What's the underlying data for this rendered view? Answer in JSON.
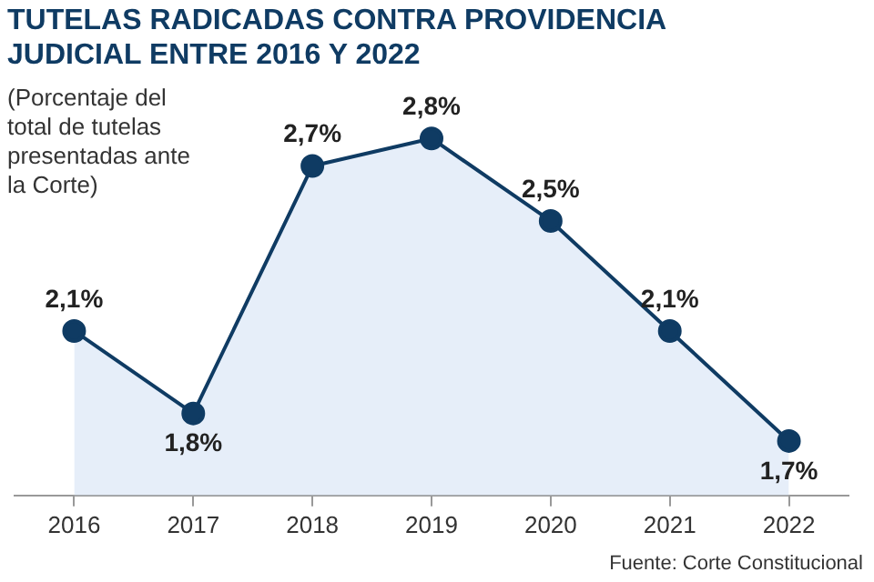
{
  "chart_data": {
    "type": "area",
    "title": "TUTELAS RADICADAS CONTRA PROVIDENCIA JUDICIAL ENTRE 2016 Y 2022",
    "subtitle": "(Porcentaje del total de tutelas presentadas ante la Corte)",
    "categories": [
      "2016",
      "2017",
      "2018",
      "2019",
      "2020",
      "2021",
      "2022"
    ],
    "series": [
      {
        "color": "#0f3b63",
        "values": [
          2.1,
          1.8,
          2.7,
          2.8,
          2.5,
          2.1,
          1.7
        ],
        "value_labels": [
          "2,1%",
          "1,8%",
          "2,7%",
          "2,8%",
          "2,5%",
          "2,1%",
          "1,7%"
        ]
      }
    ],
    "marker": "circle",
    "annotations": [
      "Fuente: Corte Constitucional"
    ]
  }
}
